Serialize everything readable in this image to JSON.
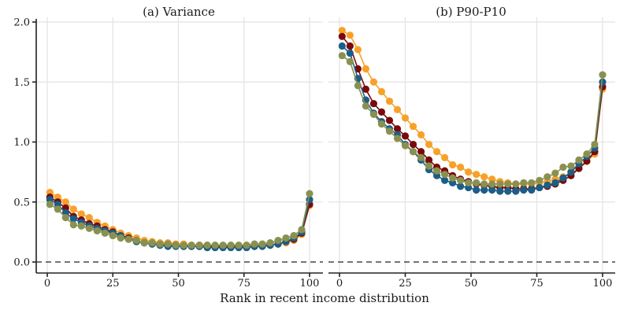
{
  "chart_data": [
    {
      "type": "line",
      "title": "(a) Variance",
      "xlabel": "Rank in recent income distribution",
      "ylabel": "",
      "xlim": [
        0,
        100
      ],
      "ylim": [
        0,
        2.0
      ],
      "xticks": [
        "0",
        "25",
        "50",
        "75",
        "100"
      ],
      "yticks": [
        "0.0",
        "0.5",
        "1.0",
        "1.5",
        "2.0"
      ],
      "grid": true,
      "reference_line": {
        "y": 0,
        "style": "dashed"
      },
      "x": [
        1,
        4,
        7,
        10,
        13,
        16,
        19,
        22,
        25,
        28,
        31,
        34,
        37,
        40,
        43,
        46,
        49,
        52,
        55,
        58,
        61,
        64,
        67,
        70,
        73,
        76,
        79,
        82,
        85,
        88,
        91,
        94,
        97,
        100
      ],
      "series": [
        {
          "name": "orange",
          "color": "#F7A12A",
          "values": [
            0.58,
            0.54,
            0.5,
            0.44,
            0.4,
            0.37,
            0.33,
            0.3,
            0.27,
            0.24,
            0.22,
            0.2,
            0.18,
            0.17,
            0.16,
            0.16,
            0.15,
            0.15,
            0.14,
            0.14,
            0.14,
            0.13,
            0.13,
            0.13,
            0.13,
            0.13,
            0.13,
            0.14,
            0.14,
            0.15,
            0.16,
            0.18,
            0.23,
            0.47
          ]
        },
        {
          "name": "dark-red",
          "color": "#7A0A0A",
          "values": [
            0.54,
            0.5,
            0.45,
            0.38,
            0.35,
            0.32,
            0.3,
            0.27,
            0.25,
            0.22,
            0.2,
            0.18,
            0.16,
            0.15,
            0.14,
            0.14,
            0.14,
            0.13,
            0.13,
            0.13,
            0.13,
            0.13,
            0.13,
            0.13,
            0.13,
            0.13,
            0.13,
            0.14,
            0.14,
            0.15,
            0.17,
            0.19,
            0.24,
            0.48
          ]
        },
        {
          "name": "blue",
          "color": "#1B5E87",
          "values": [
            0.52,
            0.48,
            0.41,
            0.36,
            0.33,
            0.3,
            0.28,
            0.26,
            0.24,
            0.22,
            0.19,
            0.17,
            0.16,
            0.15,
            0.14,
            0.13,
            0.13,
            0.13,
            0.13,
            0.13,
            0.12,
            0.12,
            0.12,
            0.12,
            0.12,
            0.12,
            0.13,
            0.13,
            0.14,
            0.15,
            0.17,
            0.2,
            0.25,
            0.52
          ]
        },
        {
          "name": "olive",
          "color": "#8A9150",
          "values": [
            0.48,
            0.44,
            0.37,
            0.31,
            0.3,
            0.28,
            0.26,
            0.24,
            0.22,
            0.2,
            0.19,
            0.18,
            0.16,
            0.16,
            0.15,
            0.15,
            0.14,
            0.14,
            0.14,
            0.14,
            0.14,
            0.14,
            0.14,
            0.14,
            0.14,
            0.14,
            0.15,
            0.15,
            0.16,
            0.18,
            0.2,
            0.22,
            0.27,
            0.57
          ]
        }
      ]
    },
    {
      "type": "line",
      "title": "(b) P90-P10",
      "xlabel": "Rank in recent income distribution",
      "ylabel": "",
      "xlim": [
        0,
        100
      ],
      "ylim": [
        0,
        2.0
      ],
      "xticks": [
        "0",
        "25",
        "50",
        "75",
        "100"
      ],
      "grid": true,
      "reference_line": {
        "y": 0,
        "style": "dashed"
      },
      "x": [
        1,
        4,
        7,
        10,
        13,
        16,
        19,
        22,
        25,
        28,
        31,
        34,
        37,
        40,
        43,
        46,
        49,
        52,
        55,
        58,
        61,
        64,
        67,
        70,
        73,
        76,
        79,
        82,
        85,
        88,
        91,
        94,
        97,
        100
      ],
      "series": [
        {
          "name": "orange",
          "color": "#F7A12A",
          "values": [
            1.93,
            1.89,
            1.77,
            1.61,
            1.5,
            1.42,
            1.34,
            1.27,
            1.2,
            1.13,
            1.06,
            0.98,
            0.92,
            0.87,
            0.81,
            0.79,
            0.75,
            0.73,
            0.71,
            0.69,
            0.67,
            0.66,
            0.65,
            0.65,
            0.65,
            0.66,
            0.67,
            0.69,
            0.71,
            0.74,
            0.78,
            0.84,
            0.9,
            1.44
          ]
        },
        {
          "name": "dark-red",
          "color": "#7A0A0A",
          "values": [
            1.88,
            1.8,
            1.61,
            1.44,
            1.32,
            1.25,
            1.18,
            1.11,
            1.05,
            0.98,
            0.92,
            0.85,
            0.79,
            0.76,
            0.72,
            0.69,
            0.67,
            0.65,
            0.64,
            0.63,
            0.62,
            0.62,
            0.61,
            0.61,
            0.61,
            0.62,
            0.63,
            0.65,
            0.68,
            0.72,
            0.78,
            0.84,
            0.92,
            1.46
          ]
        },
        {
          "name": "blue",
          "color": "#1B5E87",
          "values": [
            1.8,
            1.74,
            1.53,
            1.35,
            1.24,
            1.17,
            1.11,
            1.06,
            0.98,
            0.92,
            0.85,
            0.77,
            0.72,
            0.68,
            0.66,
            0.63,
            0.62,
            0.6,
            0.6,
            0.6,
            0.59,
            0.59,
            0.59,
            0.6,
            0.6,
            0.62,
            0.64,
            0.66,
            0.7,
            0.75,
            0.82,
            0.88,
            0.95,
            1.5
          ]
        },
        {
          "name": "olive",
          "color": "#8A9150",
          "values": [
            1.72,
            1.67,
            1.47,
            1.3,
            1.23,
            1.15,
            1.09,
            1.03,
            0.97,
            0.92,
            0.87,
            0.8,
            0.76,
            0.73,
            0.7,
            0.68,
            0.66,
            0.66,
            0.65,
            0.65,
            0.65,
            0.65,
            0.65,
            0.66,
            0.66,
            0.68,
            0.71,
            0.74,
            0.79,
            0.8,
            0.85,
            0.9,
            0.98,
            1.56
          ]
        }
      ]
    }
  ],
  "shared_xlabel": "Rank in recent income distribution"
}
